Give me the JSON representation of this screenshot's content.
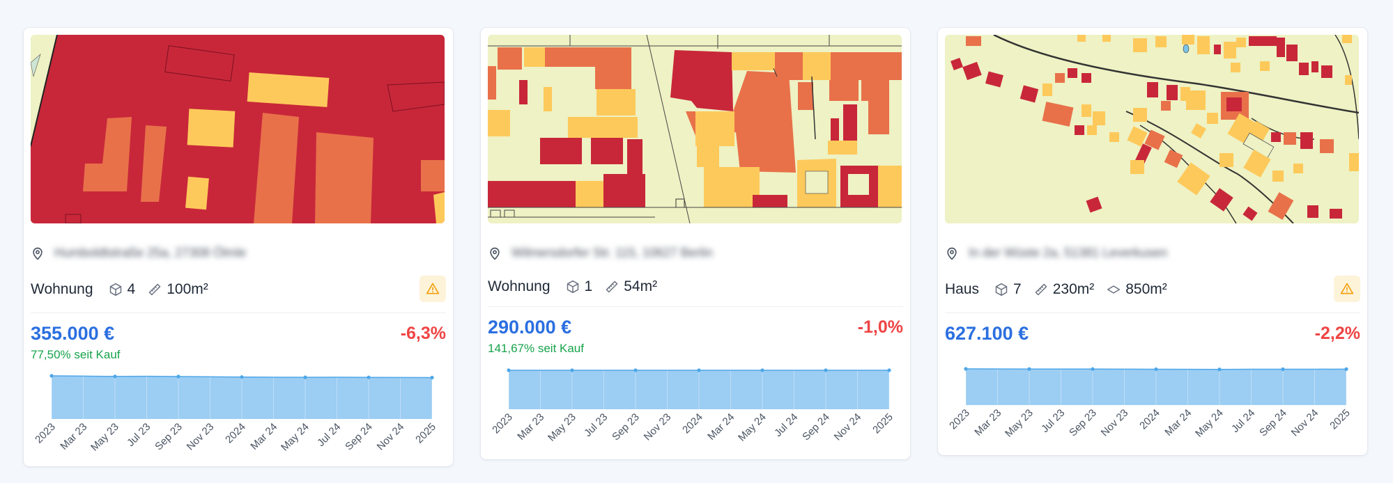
{
  "cards": [
    {
      "address": "Humboldtstraße 25a, 27308 Ölmle",
      "type": "Wohnung",
      "rooms": "4",
      "living_area": "100m²",
      "plot_area": "",
      "has_warning": true,
      "price": "355.000 €",
      "delta": "-6,3%",
      "since_purchase": "77,50% seit Kauf",
      "map_style": "dense"
    },
    {
      "address": "Wilmersdorfer Str. 115, 10627 Berlin",
      "type": "Wohnung",
      "rooms": "1",
      "living_area": "54m²",
      "plot_area": "",
      "has_warning": false,
      "price": "290.000 €",
      "delta": "-1,0%",
      "since_purchase": "141,67% seit Kauf",
      "map_style": "urban"
    },
    {
      "address": "In der Wüste 2a, 51381 Leverkusen",
      "type": "Haus",
      "rooms": "7",
      "living_area": "230m²",
      "plot_area": "850m²",
      "has_warning": true,
      "price": "627.100 €",
      "delta": "-2,2%",
      "since_purchase": "",
      "map_style": "suburban"
    }
  ],
  "chart_data": [
    {
      "type": "area",
      "x": [
        "2023",
        "Mar 23",
        "May 23",
        "Jul 23",
        "Sep 23",
        "Nov 23",
        "2024",
        "Mar 24",
        "May 24",
        "Jul 24",
        "Sep 24",
        "Nov 24",
        "2025"
      ],
      "y": [
        355000,
        354500,
        354000,
        354200,
        353800,
        353400,
        353000,
        352700,
        352500,
        352700,
        352400,
        352200,
        352000
      ],
      "xtick_labels": [
        "2023",
        "Mar 23",
        "May 23",
        "Jul 23",
        "Sep 23",
        "Nov 23",
        "2024",
        "Mar 24",
        "May 24",
        "Jul 24",
        "Sep 24",
        "Nov 24",
        "2025"
      ],
      "marker_indices": [
        0,
        2,
        4,
        6,
        8,
        10,
        12
      ],
      "color": "#9ccdf3",
      "line_color": "#4ea7e8",
      "grid": true
    },
    {
      "type": "area",
      "x": [
        "2023",
        "Mar 23",
        "May 23",
        "Jul 23",
        "Sep 23",
        "Nov 23",
        "2024",
        "Mar 24",
        "May 24",
        "Jul 24",
        "Sep 24",
        "Nov 24",
        "2025"
      ],
      "y": [
        290000,
        290000,
        290000,
        290000,
        290000,
        290000,
        290000,
        290000,
        290000,
        290000,
        290000,
        290000,
        290000
      ],
      "xtick_labels": [
        "2023",
        "Mar 23",
        "May 23",
        "Jul 23",
        "Sep 23",
        "Nov 23",
        "2024",
        "Mar 24",
        "May 24",
        "Jul 24",
        "Sep 24",
        "Nov 24",
        "2025"
      ],
      "marker_indices": [
        0,
        2,
        4,
        6,
        8,
        10,
        12
      ],
      "color": "#9ccdf3",
      "line_color": "#4ea7e8",
      "grid": true
    },
    {
      "type": "area",
      "x": [
        "2023",
        "Mar 23",
        "May 23",
        "Jul 23",
        "Sep 23",
        "Nov 23",
        "2024",
        "Mar 24",
        "May 24",
        "Jul 24",
        "Sep 24",
        "Nov 24",
        "2025"
      ],
      "y": [
        627100,
        626800,
        626600,
        626600,
        626500,
        626400,
        626000,
        625700,
        625500,
        626000,
        626100,
        626100,
        626300
      ],
      "xtick_labels": [
        "2023",
        "Mar 23",
        "May 23",
        "Jul 23",
        "Sep 23",
        "Nov 23",
        "2024",
        "Mar 24",
        "May 24",
        "Jul 24",
        "Sep 24",
        "Nov 24",
        "2025"
      ],
      "marker_indices": [
        0,
        2,
        4,
        6,
        8,
        10,
        12
      ],
      "color": "#9ccdf3",
      "line_color": "#4ea7e8",
      "grid": true
    }
  ],
  "colors": {
    "price": "#2b6fe0",
    "delta_negative": "#ef4444",
    "since_positive": "#16a34a",
    "warning": "#f59e0b",
    "map_red": "#c8273a",
    "map_orange": "#e8714a",
    "map_yellow": "#fec95b",
    "map_bg": "#eef2c4"
  },
  "icons": {
    "location": "map-pin-icon",
    "rooms": "cube-icon",
    "living_area": "ruler-icon",
    "plot_area": "plot-area-icon",
    "warning": "warning-triangle-icon"
  }
}
